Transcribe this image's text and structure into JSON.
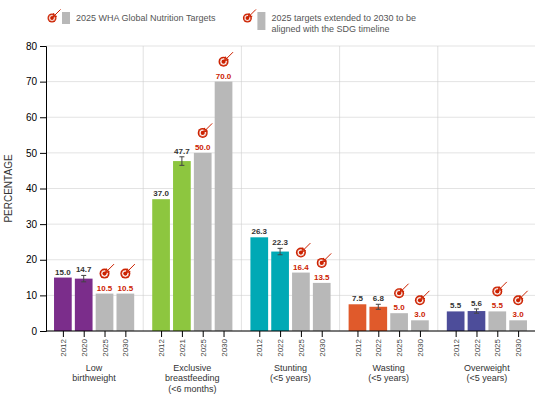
{
  "chart_data": {
    "type": "bar",
    "ylabel": "PERCENTAGE",
    "ylim": [
      0,
      80
    ],
    "yticks": [
      0,
      10,
      20,
      30,
      40,
      50,
      60,
      70,
      80
    ],
    "grid": true,
    "data_labels": true,
    "legend": "top",
    "legend_entries": [
      {
        "label": "2025 WHA Global Nutrition Targets",
        "color": "#b8b8b8"
      },
      {
        "label": "2025 targets extended to 2030 to be\naligned with the SDG timeline",
        "color": "#b8b8b8"
      }
    ],
    "groups": [
      {
        "name": "Low\nbirthweight",
        "categories": [
          "2012",
          "2020",
          "2025",
          "2030"
        ],
        "values": [
          15.0,
          14.7,
          10.5,
          10.5
        ],
        "value_labels": [
          "15.0",
          "14.7",
          "10.5",
          "10.5"
        ],
        "colors": [
          "#7b2d8b",
          "#7b2d8b",
          "#b8b8b8",
          "#b8b8b8"
        ],
        "label_colors": [
          "#333333",
          "#333333",
          "#cc2200",
          "#cc2200"
        ],
        "targets": [
          false,
          false,
          true,
          true
        ],
        "errors": [
          null,
          0.9,
          null,
          null
        ]
      },
      {
        "name": "Exclusive\nbreastfeeding\n(<6 months)",
        "categories": [
          "2012",
          "2021",
          "2025",
          "2030"
        ],
        "values": [
          37.0,
          47.7,
          50.0,
          70.0
        ],
        "value_labels": [
          "37.0",
          "47.7",
          "50.0",
          "70.0"
        ],
        "colors": [
          "#8dc63f",
          "#8dc63f",
          "#b8b8b8",
          "#b8b8b8"
        ],
        "label_colors": [
          "#333333",
          "#333333",
          "#cc2200",
          "#cc2200"
        ],
        "targets": [
          false,
          false,
          true,
          true
        ],
        "errors": [
          null,
          1.2,
          null,
          null
        ]
      },
      {
        "name": "Stunting\n(<5 years)",
        "categories": [
          "2012",
          "2022",
          "2025",
          "2030"
        ],
        "values": [
          26.3,
          22.3,
          16.4,
          13.5
        ],
        "value_labels": [
          "26.3",
          "22.3",
          "16.4",
          "13.5"
        ],
        "colors": [
          "#00a9b5",
          "#00a9b5",
          "#b8b8b8",
          "#b8b8b8"
        ],
        "label_colors": [
          "#333333",
          "#333333",
          "#cc2200",
          "#cc2200"
        ],
        "targets": [
          false,
          false,
          true,
          true
        ],
        "errors": [
          null,
          0.9,
          null,
          null
        ]
      },
      {
        "name": "Wasting\n(<5 years)",
        "categories": [
          "2012",
          "2022",
          "2025",
          "2030"
        ],
        "values": [
          7.5,
          6.8,
          5.0,
          3.0
        ],
        "value_labels": [
          "7.5",
          "6.8",
          "5.0",
          "3.0"
        ],
        "colors": [
          "#e05a2b",
          "#e05a2b",
          "#b8b8b8",
          "#b8b8b8"
        ],
        "label_colors": [
          "#333333",
          "#333333",
          "#cc2200",
          "#cc2200"
        ],
        "targets": [
          false,
          false,
          true,
          true
        ],
        "errors": [
          null,
          0.7,
          null,
          null
        ]
      },
      {
        "name": "Overweight\n(<5 years)",
        "categories": [
          "2012",
          "2022",
          "2025",
          "2030"
        ],
        "values": [
          5.5,
          5.6,
          5.5,
          3.0
        ],
        "value_labels": [
          "5.5",
          "5.6",
          "5.5",
          "3.0"
        ],
        "colors": [
          "#4d4d9a",
          "#4d4d9a",
          "#b8b8b8",
          "#b8b8b8"
        ],
        "label_colors": [
          "#333333",
          "#333333",
          "#cc2200",
          "#cc2200"
        ],
        "targets": [
          false,
          false,
          true,
          true
        ],
        "errors": [
          null,
          0.6,
          null,
          null
        ]
      }
    ]
  }
}
